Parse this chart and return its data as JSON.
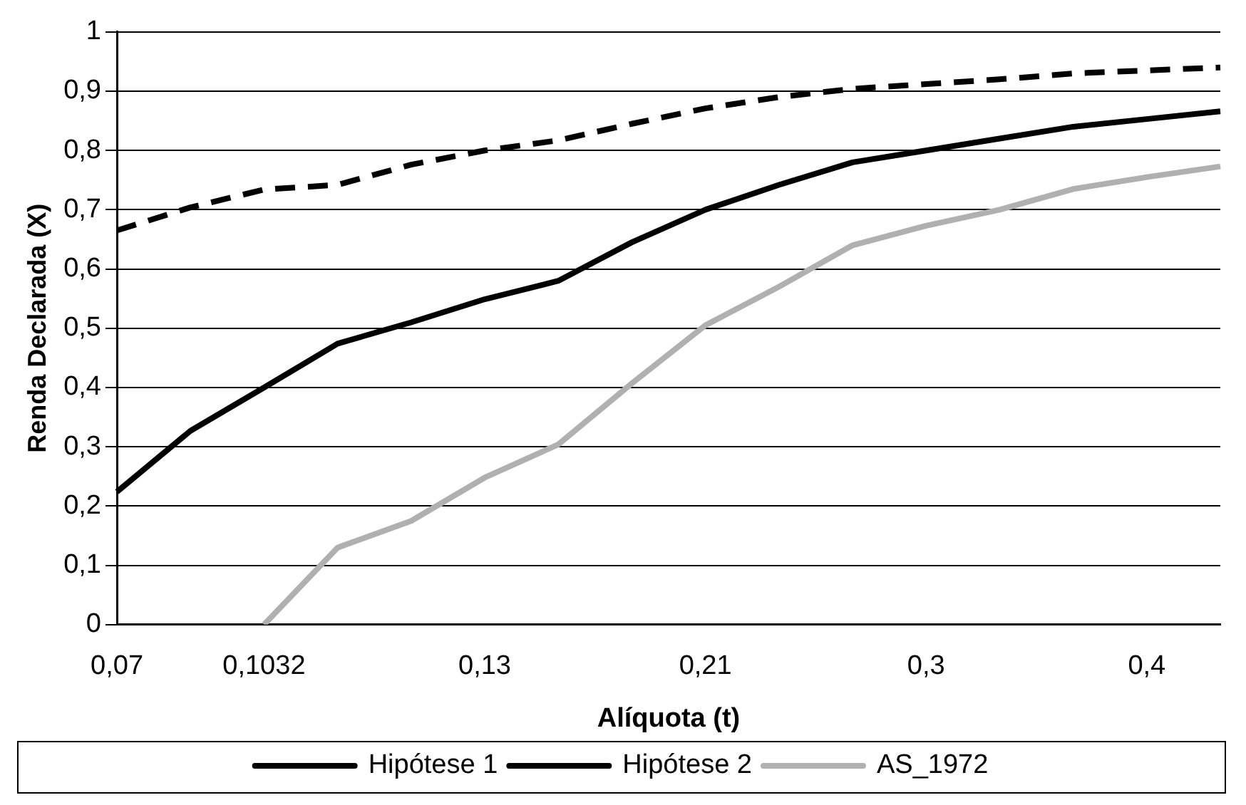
{
  "chart_data": {
    "type": "line",
    "xlabel": "Alíquota (t)",
    "ylabel": "Renda Declarada (X)",
    "categories": [
      "0,07",
      null,
      "0,1032",
      null,
      null,
      "0,13",
      null,
      null,
      "0,21",
      null,
      null,
      "0,3",
      null,
      null,
      "0,4",
      null
    ],
    "series": [
      {
        "name": "Hipótese 1",
        "color": "#000000",
        "line_style": "dashed",
        "values": [
          0.665,
          0.704,
          0.734,
          0.742,
          0.776,
          0.8,
          0.817,
          0.845,
          0.871,
          0.89,
          0.904,
          0.912,
          0.92,
          0.93,
          0.935,
          0.94
        ]
      },
      {
        "name": "Hipótese 2",
        "color": "#000000",
        "line_style": "solid",
        "values": [
          0.224,
          0.327,
          0.4,
          0.474,
          0.51,
          0.549,
          0.58,
          0.645,
          0.7,
          0.742,
          0.78,
          0.8,
          0.82,
          0.84,
          0.853,
          0.866
        ]
      },
      {
        "name": "AS_1972",
        "color": "#b0b0b0",
        "line_style": "solid",
        "values": [
          null,
          null,
          0,
          0.13,
          0.175,
          0.248,
          0.304,
          0.407,
          0.505,
          0.57,
          0.64,
          0.673,
          0.7,
          0.735,
          0.755,
          0.773
        ]
      }
    ],
    "ylim": [
      0,
      1
    ],
    "yticks": [
      0,
      {
        "value": 0.1,
        "label": "0,1"
      },
      {
        "value": 0.2,
        "label": "0,2"
      },
      {
        "value": 0.3,
        "label": "0,3"
      },
      {
        "value": 0.4,
        "label": "0,4"
      },
      {
        "value": 0.5,
        "label": "0,5"
      },
      {
        "value": 0.6,
        "label": "0,6"
      },
      {
        "value": 0.7,
        "label": "0,7"
      },
      {
        "value": 0.8,
        "label": "0,8"
      },
      {
        "value": 0.9,
        "label": "0,9"
      },
      1
    ],
    "grid": "y",
    "legend": "bottom",
    "marker": "none"
  }
}
